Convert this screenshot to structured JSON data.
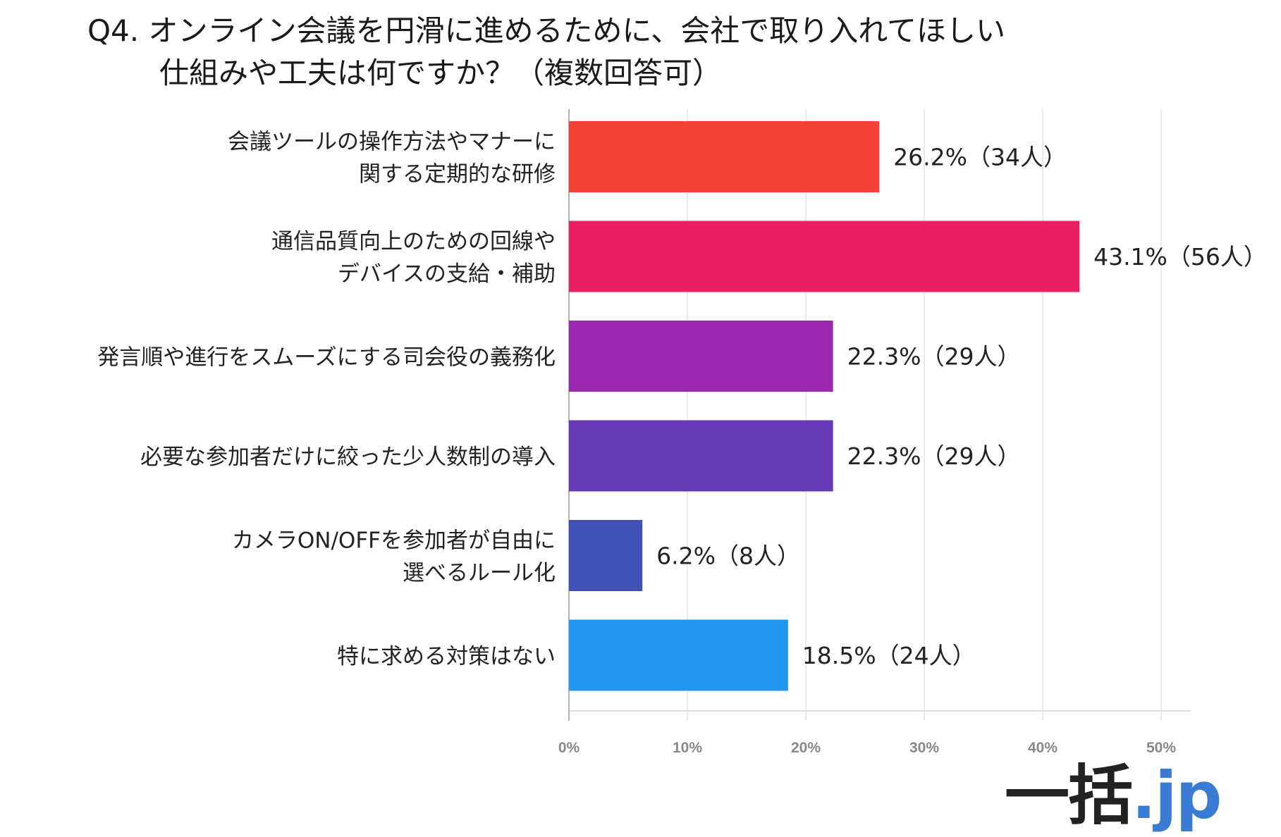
{
  "chart_data": {
    "type": "bar",
    "orientation": "horizontal",
    "title": [
      "Q4. オンライン会議を円滑に進めるために、会社で取り入れてほしい",
      "仕組みや工夫は何ですか？（複数回答可）"
    ],
    "categories": [
      [
        "会議ツールの操作方法やマナーに",
        "関する定期的な研修"
      ],
      [
        "通信品質向上のための回線や",
        "デバイスの支給・補助"
      ],
      [
        "発言順や進行をスムーズにする司会役の義務化"
      ],
      [
        "必要な参加者だけに絞った少人数制の導入"
      ],
      [
        "カメラON/OFFを参加者が自由に",
        "選べるルール化"
      ],
      [
        "特に求める対策はない"
      ]
    ],
    "values": [
      26.2,
      43.1,
      22.3,
      22.3,
      6.2,
      18.5
    ],
    "counts": [
      34,
      56,
      29,
      29,
      8,
      24
    ],
    "data_labels": [
      "26.2%（34人）",
      "43.1%（56人）",
      "22.3%（29人）",
      "22.3%（29人）",
      "6.2%（8人）",
      "18.5%（24人）"
    ],
    "colors": [
      "#f44336",
      "#e91e63",
      "#9c27b0",
      "#673ab7",
      "#3f51b5",
      "#2196f3"
    ],
    "xlim": [
      0,
      52
    ],
    "xticks": [
      0,
      10,
      20,
      30,
      40,
      50
    ],
    "xtick_labels": [
      "0%",
      "10%",
      "20%",
      "30%",
      "40%",
      "50%"
    ],
    "xlabel": "",
    "ylabel": "",
    "grid": true
  },
  "logo": {
    "kanji": "一括",
    "suffix": ".jp"
  }
}
